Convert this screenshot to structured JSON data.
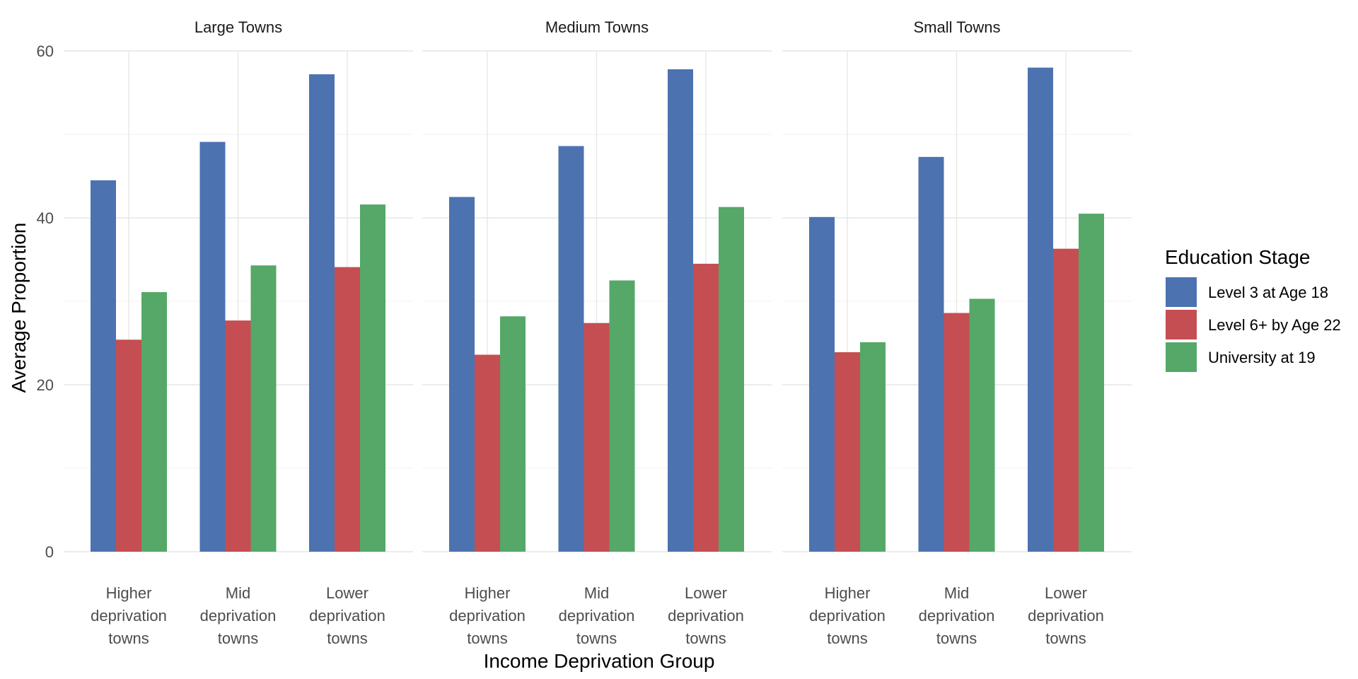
{
  "chart_data": {
    "type": "bar",
    "xlabel": "Income Deprivation Group",
    "ylabel": "Average Proportion",
    "ylim": [
      0,
      60
    ],
    "yticks": [
      0,
      20,
      40,
      60
    ],
    "grid": true,
    "legend": {
      "title": "Education Stage",
      "placement": "right"
    },
    "categories": [
      [
        "Higher",
        "deprivation",
        "towns"
      ],
      [
        "Mid",
        "deprivation",
        "towns"
      ],
      [
        "Lower",
        "deprivation",
        "towns"
      ]
    ],
    "series_meta": [
      {
        "name": "Level 3 at Age 18",
        "color": "#4C72B0"
      },
      {
        "name": "Level 6+ by Age 22",
        "color": "#C44E52"
      },
      {
        "name": "University at 19",
        "color": "#55A868"
      }
    ],
    "facets": [
      {
        "title": "Large Towns",
        "series": [
          {
            "name": "Level 3 at Age 18",
            "values": [
              44.5,
              49.1,
              57.2
            ]
          },
          {
            "name": "Level 6+ by Age 22",
            "values": [
              25.4,
              27.7,
              34.1
            ]
          },
          {
            "name": "University at 19",
            "values": [
              31.1,
              34.3,
              41.6
            ]
          }
        ]
      },
      {
        "title": "Medium Towns",
        "series": [
          {
            "name": "Level 3 at Age 18",
            "values": [
              42.5,
              48.6,
              57.8
            ]
          },
          {
            "name": "Level 6+ by Age 22",
            "values": [
              23.6,
              27.4,
              34.5
            ]
          },
          {
            "name": "University at 19",
            "values": [
              28.2,
              32.5,
              41.3
            ]
          }
        ]
      },
      {
        "title": "Small Towns",
        "series": [
          {
            "name": "Level 3 at Age 18",
            "values": [
              40.1,
              47.3,
              58.0
            ]
          },
          {
            "name": "Level 6+ by Age 22",
            "values": [
              23.9,
              28.6,
              36.3
            ]
          },
          {
            "name": "University at 19",
            "values": [
              25.1,
              30.3,
              40.5
            ]
          }
        ]
      }
    ]
  }
}
